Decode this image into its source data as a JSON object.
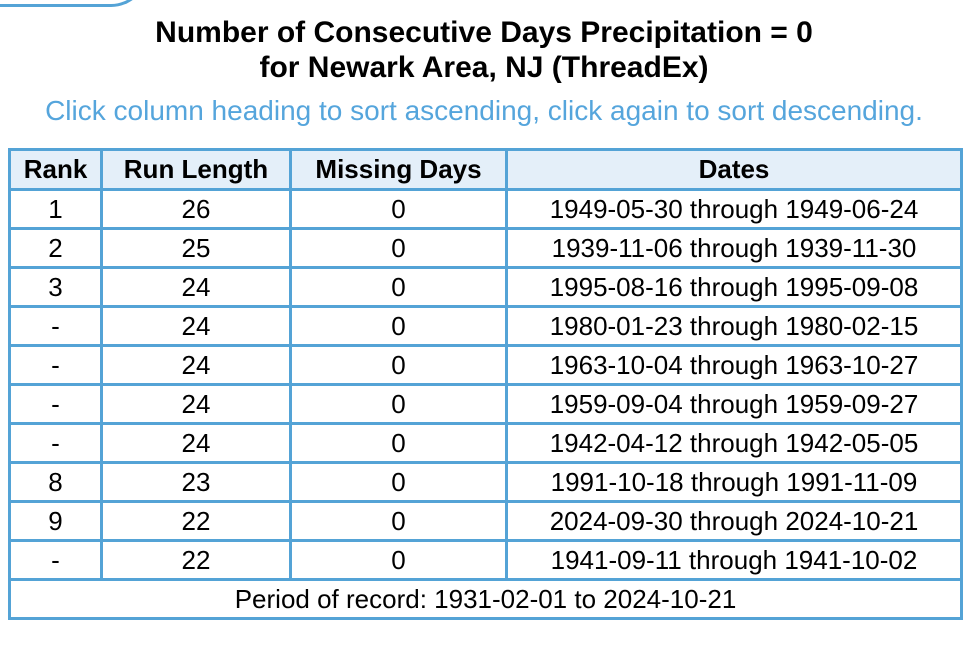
{
  "header": {
    "title_line1": "Number of Consecutive Days Precipitation = 0",
    "title_line2": "for Newark Area, NJ (ThreadEx)",
    "subtitle": "Click column heading to sort ascending, click again to sort descending."
  },
  "colors": {
    "table_border": "#54a3d6",
    "header_bg": "#e4eff9",
    "subtitle_text": "#55a5dc"
  },
  "table": {
    "columns": [
      "Rank",
      "Run Length",
      "Missing Days",
      "Dates"
    ],
    "rows": [
      {
        "rank": "1",
        "run_length": "26",
        "missing_days": "0",
        "dates": "1949-05-30 through 1949-06-24"
      },
      {
        "rank": "2",
        "run_length": "25",
        "missing_days": "0",
        "dates": "1939-11-06 through 1939-11-30"
      },
      {
        "rank": "3",
        "run_length": "24",
        "missing_days": "0",
        "dates": "1995-08-16 through 1995-09-08"
      },
      {
        "rank": "-",
        "run_length": "24",
        "missing_days": "0",
        "dates": "1980-01-23 through 1980-02-15"
      },
      {
        "rank": "-",
        "run_length": "24",
        "missing_days": "0",
        "dates": "1963-10-04 through 1963-10-27"
      },
      {
        "rank": "-",
        "run_length": "24",
        "missing_days": "0",
        "dates": "1959-09-04 through 1959-09-27"
      },
      {
        "rank": "-",
        "run_length": "24",
        "missing_days": "0",
        "dates": "1942-04-12 through 1942-05-05"
      },
      {
        "rank": "8",
        "run_length": "23",
        "missing_days": "0",
        "dates": "1991-10-18 through 1991-11-09"
      },
      {
        "rank": "9",
        "run_length": "22",
        "missing_days": "0",
        "dates": "2024-09-30 through 2024-10-21"
      },
      {
        "rank": "-",
        "run_length": "22",
        "missing_days": "0",
        "dates": "1941-09-11 through 1941-10-02"
      }
    ],
    "footer": "Period of record: 1931-02-01 to 2024-10-21"
  }
}
